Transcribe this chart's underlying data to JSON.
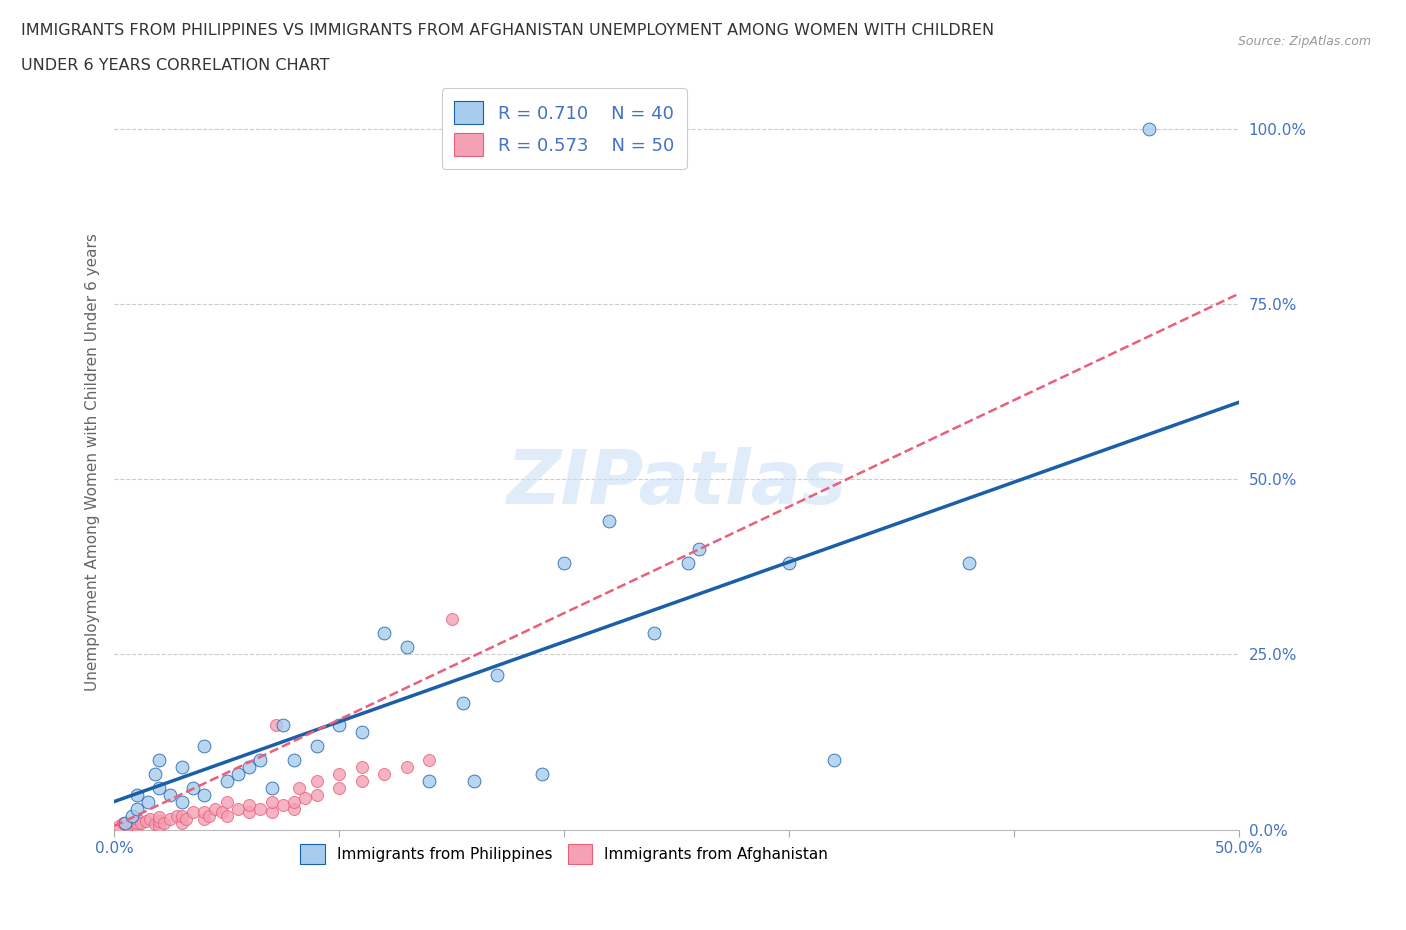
{
  "title_line1": "IMMIGRANTS FROM PHILIPPINES VS IMMIGRANTS FROM AFGHANISTAN UNEMPLOYMENT AMONG WOMEN WITH CHILDREN",
  "title_line2": "UNDER 6 YEARS CORRELATION CHART",
  "source": "Source: ZipAtlas.com",
  "ylabel": "Unemployment Among Women with Children Under 6 years",
  "watermark": "ZIPatlas",
  "R_philippines": 0.71,
  "N_philippines": 40,
  "R_afghanistan": 0.573,
  "N_afghanistan": 50,
  "xlim": [
    0.0,
    0.5
  ],
  "ylim": [
    0.0,
    1.05
  ],
  "xticks": [
    0.0,
    0.1,
    0.2,
    0.3,
    0.4,
    0.5
  ],
  "ytick_positions": [
    0.0,
    0.25,
    0.5,
    0.75,
    1.0
  ],
  "ytick_labels": [
    "0.0%",
    "25.0%",
    "50.0%",
    "75.0%",
    "100.0%"
  ],
  "xtick_labels": [
    "0.0%",
    "",
    "",
    "",
    "",
    "50.0%"
  ],
  "color_philippines": "#a8ccee",
  "color_afghanistan": "#f4a0b5",
  "trendline_philippines_color": "#1a5fa8",
  "trendline_afghanistan_color": "#e8607a",
  "background_color": "#ffffff",
  "grid_color": "#cccccc",
  "philippines_x": [
    0.005,
    0.008,
    0.01,
    0.01,
    0.015,
    0.018,
    0.02,
    0.02,
    0.025,
    0.03,
    0.03,
    0.035,
    0.04,
    0.04,
    0.05,
    0.055,
    0.06,
    0.065,
    0.07,
    0.075,
    0.08,
    0.09,
    0.1,
    0.11,
    0.12,
    0.13,
    0.14,
    0.155,
    0.16,
    0.17,
    0.19,
    0.2,
    0.22,
    0.24,
    0.255,
    0.26,
    0.3,
    0.32,
    0.38,
    0.46
  ],
  "philippines_y": [
    0.01,
    0.02,
    0.03,
    0.05,
    0.04,
    0.08,
    0.06,
    0.1,
    0.05,
    0.04,
    0.09,
    0.06,
    0.05,
    0.12,
    0.07,
    0.08,
    0.09,
    0.1,
    0.06,
    0.15,
    0.1,
    0.12,
    0.15,
    0.14,
    0.28,
    0.26,
    0.07,
    0.18,
    0.07,
    0.22,
    0.08,
    0.38,
    0.44,
    0.28,
    0.38,
    0.4,
    0.38,
    0.1,
    0.38,
    1.0
  ],
  "afghanistan_x": [
    0.002,
    0.004,
    0.006,
    0.008,
    0.01,
    0.01,
    0.01,
    0.012,
    0.014,
    0.016,
    0.018,
    0.02,
    0.02,
    0.02,
    0.022,
    0.025,
    0.028,
    0.03,
    0.03,
    0.032,
    0.035,
    0.04,
    0.04,
    0.042,
    0.045,
    0.048,
    0.05,
    0.05,
    0.055,
    0.06,
    0.06,
    0.065,
    0.07,
    0.07,
    0.072,
    0.075,
    0.08,
    0.08,
    0.082,
    0.085,
    0.09,
    0.09,
    0.1,
    0.1,
    0.11,
    0.11,
    0.12,
    0.13,
    0.14,
    0.15
  ],
  "afghanistan_y": [
    0.005,
    0.01,
    0.005,
    0.008,
    0.005,
    0.01,
    0.015,
    0.01,
    0.012,
    0.015,
    0.008,
    0.005,
    0.012,
    0.018,
    0.01,
    0.015,
    0.02,
    0.01,
    0.02,
    0.015,
    0.025,
    0.015,
    0.025,
    0.02,
    0.03,
    0.025,
    0.02,
    0.04,
    0.03,
    0.025,
    0.035,
    0.03,
    0.025,
    0.04,
    0.15,
    0.035,
    0.03,
    0.04,
    0.06,
    0.045,
    0.05,
    0.07,
    0.06,
    0.08,
    0.07,
    0.09,
    0.08,
    0.09,
    0.1,
    0.3
  ],
  "trendline_phil_slope": 1.14,
  "trendline_phil_intercept": 0.04,
  "trendline_afgh_slope": 1.52,
  "trendline_afgh_intercept": 0.005
}
